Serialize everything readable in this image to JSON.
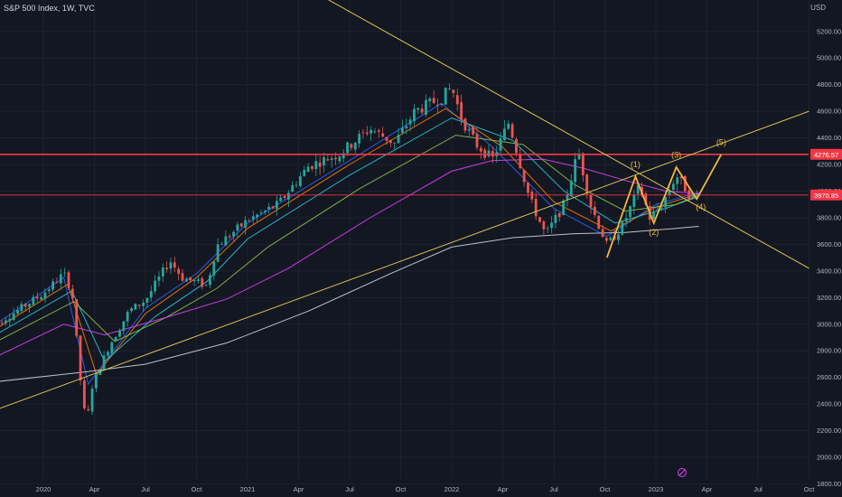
{
  "header": {
    "title": "S&P 500 Index, 1W, TVC",
    "currency": "USD"
  },
  "colors": {
    "background": "#131722",
    "up_candle": "#26a69a",
    "down_candle": "#ef5350",
    "resistance_line": "#f23645",
    "trend_line": "#e0c65a",
    "wave_line": "#f5b53d",
    "ma_fast": "#2962ff",
    "ma_mid1": "#f57c00",
    "ma_mid2": "#26c6da",
    "ma_mid3": "#8bc34a",
    "ma_slow": "#e040fb",
    "ma_200": "#d1d4dc"
  },
  "chart_data": {
    "type": "candlestick",
    "title": "S&P 500 Index, 1W, TVC",
    "ylim": [
      1800,
      5400
    ],
    "y_ticks": [
      1800,
      2000,
      2200,
      2400,
      2600,
      2800,
      3000,
      3200,
      3400,
      3600,
      3800,
      4000,
      4200,
      4400,
      4600,
      4800,
      5000,
      5200
    ],
    "x_ticks": [
      {
        "label": "2020",
        "t": 2020.0
      },
      {
        "label": "Apr",
        "t": 2020.25
      },
      {
        "label": "Jul",
        "t": 2020.5
      },
      {
        "label": "Oct",
        "t": 2020.75
      },
      {
        "label": "2021",
        "t": 2021.0
      },
      {
        "label": "Apr",
        "t": 2021.25
      },
      {
        "label": "Jul",
        "t": 2021.5
      },
      {
        "label": "Oct",
        "t": 2021.75
      },
      {
        "label": "2022",
        "t": 2022.0
      },
      {
        "label": "Apr",
        "t": 2022.25
      },
      {
        "label": "Jul",
        "t": 2022.5
      },
      {
        "label": "Oct",
        "t": 2022.75
      },
      {
        "label": "2023",
        "t": 2023.0
      },
      {
        "label": "Apr",
        "t": 2023.25
      },
      {
        "label": "Jul",
        "t": 2023.5
      },
      {
        "label": "Oct",
        "t": 2023.75
      }
    ],
    "price_path": [
      [
        2019.72,
        2960
      ],
      [
        2019.85,
        3080
      ],
      [
        2020.0,
        3230
      ],
      [
        2020.1,
        3380
      ],
      [
        2020.14,
        3250
      ],
      [
        2020.18,
        2600
      ],
      [
        2020.21,
        2240
      ],
      [
        2020.24,
        2540
      ],
      [
        2020.32,
        2830
      ],
      [
        2020.42,
        3100
      ],
      [
        2020.5,
        3180
      ],
      [
        2020.62,
        3480
      ],
      [
        2020.68,
        3350
      ],
      [
        2020.8,
        3290
      ],
      [
        2020.85,
        3590
      ],
      [
        2021.0,
        3780
      ],
      [
        2021.15,
        3900
      ],
      [
        2021.3,
        4190
      ],
      [
        2021.45,
        4280
      ],
      [
        2021.6,
        4470
      ],
      [
        2021.72,
        4360
      ],
      [
        2021.82,
        4600
      ],
      [
        2021.95,
        4700
      ],
      [
        2022.0,
        4780
      ],
      [
        2022.05,
        4540
      ],
      [
        2022.12,
        4350
      ],
      [
        2022.2,
        4240
      ],
      [
        2022.28,
        4520
      ],
      [
        2022.38,
        3950
      ],
      [
        2022.46,
        3670
      ],
      [
        2022.55,
        3900
      ],
      [
        2022.62,
        4300
      ],
      [
        2022.68,
        3900
      ],
      [
        2022.76,
        3590
      ],
      [
        2022.84,
        3750
      ],
      [
        2022.92,
        4040
      ],
      [
        2022.97,
        3800
      ],
      [
        2023.03,
        3900
      ],
      [
        2023.1,
        4120
      ],
      [
        2023.17,
        3960
      ],
      [
        2023.21,
        3970
      ]
    ],
    "moving_averages": [
      {
        "color_key": "ma_fast",
        "points": [
          [
            2019.72,
            2950
          ],
          [
            2020.1,
            3350
          ],
          [
            2020.22,
            2550
          ],
          [
            2020.5,
            3120
          ],
          [
            2020.75,
            3380
          ],
          [
            2021.0,
            3760
          ],
          [
            2021.5,
            4230
          ],
          [
            2021.95,
            4660
          ],
          [
            2022.2,
            4330
          ],
          [
            2022.5,
            3870
          ],
          [
            2022.76,
            3660
          ],
          [
            2023.0,
            3900
          ],
          [
            2023.21,
            3990
          ]
        ]
      },
      {
        "color_key": "ma_mid1",
        "points": [
          [
            2019.72,
            2920
          ],
          [
            2020.12,
            3300
          ],
          [
            2020.26,
            2620
          ],
          [
            2020.5,
            3080
          ],
          [
            2020.75,
            3350
          ],
          [
            2021.0,
            3720
          ],
          [
            2021.5,
            4200
          ],
          [
            2021.97,
            4620
          ],
          [
            2022.25,
            4330
          ],
          [
            2022.5,
            3920
          ],
          [
            2022.78,
            3700
          ],
          [
            2023.0,
            3880
          ],
          [
            2023.21,
            3980
          ]
        ]
      },
      {
        "color_key": "ma_mid2",
        "points": [
          [
            2019.72,
            2880
          ],
          [
            2020.14,
            3250
          ],
          [
            2020.3,
            2720
          ],
          [
            2020.55,
            3060
          ],
          [
            2020.8,
            3320
          ],
          [
            2021.0,
            3640
          ],
          [
            2021.5,
            4120
          ],
          [
            2022.0,
            4550
          ],
          [
            2022.3,
            4380
          ],
          [
            2022.55,
            4000
          ],
          [
            2022.8,
            3760
          ],
          [
            2023.05,
            3870
          ],
          [
            2023.21,
            3970
          ]
        ]
      },
      {
        "color_key": "ma_mid3",
        "points": [
          [
            2019.72,
            2830
          ],
          [
            2020.15,
            3170
          ],
          [
            2020.35,
            2870
          ],
          [
            2020.6,
            3050
          ],
          [
            2020.85,
            3270
          ],
          [
            2021.1,
            3580
          ],
          [
            2021.55,
            4020
          ],
          [
            2022.02,
            4420
          ],
          [
            2022.35,
            4350
          ],
          [
            2022.6,
            4050
          ],
          [
            2022.85,
            3850
          ],
          [
            2023.1,
            3900
          ],
          [
            2023.21,
            3960
          ]
        ]
      },
      {
        "color_key": "ma_slow",
        "points": [
          [
            2019.72,
            2720
          ],
          [
            2020.1,
            3000
          ],
          [
            2020.3,
            2920
          ],
          [
            2020.6,
            3050
          ],
          [
            2020.9,
            3190
          ],
          [
            2021.2,
            3420
          ],
          [
            2021.6,
            3800
          ],
          [
            2022.0,
            4150
          ],
          [
            2022.2,
            4230
          ],
          [
            2022.45,
            4240
          ],
          [
            2022.65,
            4170
          ],
          [
            2022.85,
            4080
          ],
          [
            2023.05,
            4000
          ],
          [
            2023.21,
            3980
          ]
        ]
      },
      {
        "color_key": "ma_200",
        "points": [
          [
            2019.72,
            2560
          ],
          [
            2020.2,
            2640
          ],
          [
            2020.5,
            2700
          ],
          [
            2020.9,
            2860
          ],
          [
            2021.3,
            3100
          ],
          [
            2021.7,
            3380
          ],
          [
            2022.0,
            3580
          ],
          [
            2022.3,
            3650
          ],
          [
            2022.6,
            3680
          ],
          [
            2022.85,
            3690
          ],
          [
            2023.1,
            3720
          ],
          [
            2023.21,
            3735
          ]
        ]
      }
    ],
    "horizontal_lines": [
      {
        "price": 4276.57,
        "label": "4276.57",
        "color_key": "resistance_line",
        "width": 1.6
      },
      {
        "price": 3970.85,
        "label": "3970.85",
        "color_key": "resistance_line",
        "width": 0.8
      }
    ],
    "trend_lines": [
      {
        "from": [
          2020.6,
          6120
        ],
        "to": [
          2023.75,
          3420
        ]
      },
      {
        "from": [
          2019.72,
          2330
        ],
        "to": [
          2023.75,
          4600
        ]
      }
    ],
    "elliott_wave": {
      "points": [
        [
          2022.76,
          3500
        ],
        [
          2022.9,
          4110
        ],
        [
          2022.99,
          3760
        ],
        [
          2023.1,
          4180
        ],
        [
          2023.2,
          3940
        ],
        [
          2023.32,
          4276
        ]
      ],
      "labels": [
        {
          "text": "(1)",
          "t": 2022.9,
          "price": 4180
        },
        {
          "text": "(2)",
          "t": 2022.99,
          "price": 3670
        },
        {
          "text": "(3)",
          "t": 2023.1,
          "price": 4250
        },
        {
          "text": "(4)",
          "t": 2023.22,
          "price": 3860
        },
        {
          "text": "(5)",
          "t": 2023.32,
          "price": 4345
        }
      ]
    }
  }
}
